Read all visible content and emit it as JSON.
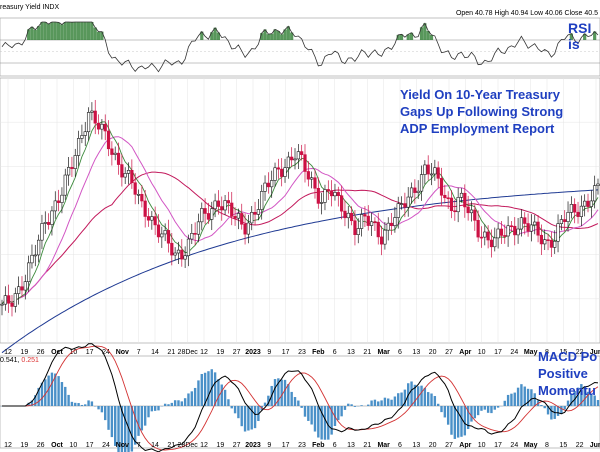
{
  "header": {
    "title": "reasury Yield  INDX",
    "ohlc": "Open 40.78  High 40.94  Low 40.06  Close 40.5"
  },
  "annotations": {
    "rsi": "RSI is",
    "yield_lines": [
      "Yield On 10-Year Treasury",
      "Gaps Up Following Strong",
      "ADP Employment Report"
    ],
    "macd_lines": [
      "MACD Po",
      "Positive",
      "Momentu"
    ]
  },
  "macd_values": {
    "macd": "0.541",
    "signal": "0.251"
  },
  "colors": {
    "up": "#1a1a1a",
    "down": "#cc1144",
    "ma_short": "#3c8a3c",
    "ma_mid": "#d256c4",
    "ma_long": "#c2185b",
    "ma_200": "#1f3a93",
    "rsi_fill": "#2e7d32",
    "macd_line": "#000000",
    "macd_signal": "#d33333",
    "macd_hist": "#4a90c8",
    "annotation": "#1f3fc0"
  },
  "chart_data": {
    "type": "candlestick",
    "x_labels": [
      "12",
      "19",
      "26",
      "Oct",
      "10",
      "17",
      "24",
      "Nov",
      "7",
      "14",
      "21",
      "28Dec",
      "12",
      "19",
      "27",
      "2023",
      "9",
      "17",
      "23",
      "Feb",
      "6",
      "13",
      "21",
      "Mar",
      "6",
      "13",
      "20",
      "27",
      "Apr",
      "10",
      "17",
      "24",
      "May",
      "8",
      "15",
      "22",
      "Jun"
    ],
    "close_path": [
      14,
      15,
      17,
      19,
      22,
      26,
      28,
      30,
      33,
      37,
      41,
      39,
      37,
      35,
      33,
      31,
      28,
      27,
      25,
      23,
      21,
      22,
      24,
      26,
      27,
      29,
      28,
      26,
      25,
      27,
      29,
      31,
      33,
      34,
      35,
      33,
      31,
      29,
      30,
      28,
      27,
      25,
      26,
      25,
      24,
      26,
      27,
      29,
      31,
      33,
      32,
      30,
      28,
      29,
      27,
      25,
      24,
      23,
      24,
      25,
      26,
      25,
      24,
      23,
      24,
      26,
      27,
      28,
      29,
      30
    ]
  }
}
